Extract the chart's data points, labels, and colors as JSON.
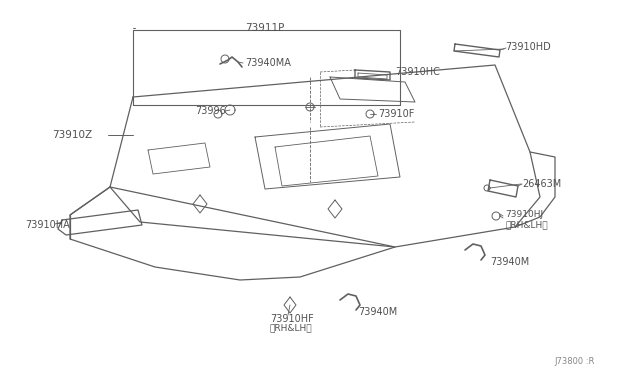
{
  "bg_color": "#ffffff",
  "line_color": "#606060",
  "text_color": "#505050",
  "watermark": "J73800 :R",
  "fig_w": 6.4,
  "fig_h": 3.72,
  "dpi": 100,
  "xlim": [
    0,
    640
  ],
  "ylim": [
    0,
    372
  ]
}
